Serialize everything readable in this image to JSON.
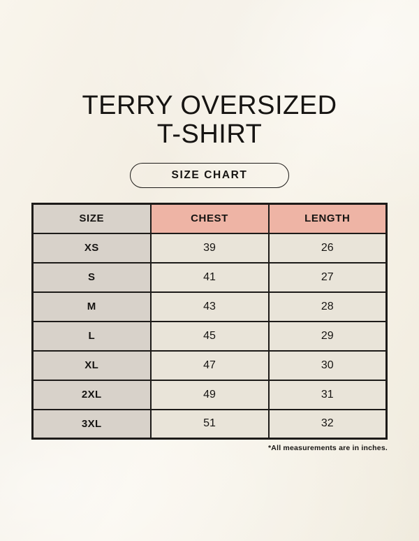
{
  "page": {
    "title_line1": "TERRY OVERSIZED",
    "title_line2": "T-SHIRT",
    "badge_label": "SIZE CHART",
    "footnote": "*All measurements are in inches."
  },
  "table": {
    "columns": [
      "SIZE",
      "CHEST",
      "LENGTH"
    ],
    "rows": [
      {
        "size": "XS",
        "chest": "39",
        "length": "26"
      },
      {
        "size": "S",
        "chest": "41",
        "length": "27"
      },
      {
        "size": "M",
        "chest": "43",
        "length": "28"
      },
      {
        "size": "L",
        "chest": "45",
        "length": "29"
      },
      {
        "size": "XL",
        "chest": "47",
        "length": "30"
      },
      {
        "size": "2XL",
        "chest": "49",
        "length": "31"
      },
      {
        "size": "3XL",
        "chest": "51",
        "length": "32"
      }
    ]
  },
  "colors": {
    "background_base": "#f6f1e7",
    "header_size_bg": "#d8d2ca",
    "header_measure_bg": "#eeb4a5",
    "size_col_bg": "#d8d2ca",
    "cell_bg": "#e9e4d9",
    "border": "#1d1b19",
    "text": "#161412"
  }
}
